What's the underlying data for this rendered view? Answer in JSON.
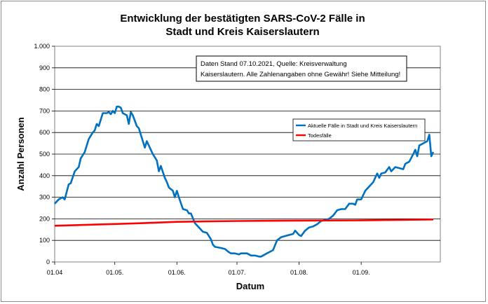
{
  "chart_data": {
    "type": "line",
    "title_lines": [
      "Entwicklung der bestätigten SARS-CoV-2 Fälle in",
      "Stadt und Kreis Kaiserslautern"
    ],
    "xlabel": "Datum",
    "ylabel": "Anzahl Personen",
    "ylim": [
      0,
      1000
    ],
    "yticks": [
      0,
      100,
      200,
      300,
      400,
      500,
      600,
      700,
      800,
      900,
      1000
    ],
    "ytick_labels": [
      "0",
      "100",
      "200",
      "300",
      "400",
      "500",
      "600",
      "700",
      "800",
      "900",
      "1.000"
    ],
    "xlim": [
      "2021-04-01",
      "2021-10-07"
    ],
    "xticks": [
      {
        "date": "2021-04-01",
        "label": "01.04"
      },
      {
        "date": "2021-05-01",
        "label": "01.05."
      },
      {
        "date": "2021-06-01",
        "label": "01.06."
      },
      {
        "date": "2021-07-01",
        "label": "01.07."
      },
      {
        "date": "2021-08-01",
        "label": "01.08."
      },
      {
        "date": "2021-09-01",
        "label": "01.09."
      }
    ],
    "grid": "horizontal",
    "legend_position": "right",
    "annotation_lines": [
      "Daten Stand 07.10.2021, Quelle: Kreisverwaltung",
      "Kaiserslautern. Alle Zahlenangaben ohne Gewähr! Siehe Mitteilung!"
    ],
    "series": [
      {
        "name": "Aktuelle Fälle in Stadt und Kreis Kaiserslautern",
        "color": "#0070c0",
        "points": [
          [
            "2021-04-01",
            270
          ],
          [
            "2021-04-03",
            290
          ],
          [
            "2021-04-05",
            300
          ],
          [
            "2021-04-06",
            290
          ],
          [
            "2021-04-08",
            360
          ],
          [
            "2021-04-09",
            365
          ],
          [
            "2021-04-11",
            420
          ],
          [
            "2021-04-13",
            440
          ],
          [
            "2021-04-14",
            480
          ],
          [
            "2021-04-16",
            510
          ],
          [
            "2021-04-18",
            570
          ],
          [
            "2021-04-20",
            600
          ],
          [
            "2021-04-21",
            610
          ],
          [
            "2021-04-22",
            640
          ],
          [
            "2021-04-23",
            630
          ],
          [
            "2021-04-25",
            690
          ],
          [
            "2021-04-27",
            690
          ],
          [
            "2021-04-28",
            695
          ],
          [
            "2021-04-29",
            685
          ],
          [
            "2021-04-30",
            700
          ],
          [
            "2021-05-01",
            690
          ],
          [
            "2021-05-02",
            720
          ],
          [
            "2021-05-03",
            720
          ],
          [
            "2021-05-04",
            715
          ],
          [
            "2021-05-05",
            690
          ],
          [
            "2021-05-07",
            680
          ],
          [
            "2021-05-08",
            640
          ],
          [
            "2021-05-09",
            695
          ],
          [
            "2021-05-10",
            680
          ],
          [
            "2021-05-12",
            630
          ],
          [
            "2021-05-13",
            620
          ],
          [
            "2021-05-15",
            560
          ],
          [
            "2021-05-16",
            530
          ],
          [
            "2021-05-17",
            560
          ],
          [
            "2021-05-19",
            520
          ],
          [
            "2021-05-20",
            500
          ],
          [
            "2021-05-22",
            470
          ],
          [
            "2021-05-23",
            420
          ],
          [
            "2021-05-24",
            445
          ],
          [
            "2021-05-26",
            390
          ],
          [
            "2021-05-27",
            370
          ],
          [
            "2021-05-28",
            345
          ],
          [
            "2021-05-30",
            330
          ],
          [
            "2021-05-31",
            300
          ],
          [
            "2021-06-01",
            330
          ],
          [
            "2021-06-02",
            300
          ],
          [
            "2021-06-04",
            245
          ],
          [
            "2021-06-06",
            240
          ],
          [
            "2021-06-07",
            225
          ],
          [
            "2021-06-08",
            225
          ],
          [
            "2021-06-10",
            180
          ],
          [
            "2021-06-12",
            160
          ],
          [
            "2021-06-14",
            140
          ],
          [
            "2021-06-16",
            135
          ],
          [
            "2021-06-18",
            105
          ],
          [
            "2021-06-19",
            80
          ],
          [
            "2021-06-20",
            70
          ],
          [
            "2021-06-23",
            65
          ],
          [
            "2021-06-25",
            60
          ],
          [
            "2021-06-27",
            45
          ],
          [
            "2021-06-28",
            40
          ],
          [
            "2021-06-30",
            40
          ],
          [
            "2021-07-02",
            35
          ],
          [
            "2021-07-03",
            40
          ],
          [
            "2021-07-04",
            40
          ],
          [
            "2021-07-06",
            40
          ],
          [
            "2021-07-08",
            30
          ],
          [
            "2021-07-10",
            30
          ],
          [
            "2021-07-12",
            25
          ],
          [
            "2021-07-13",
            25
          ],
          [
            "2021-07-15",
            35
          ],
          [
            "2021-07-17",
            45
          ],
          [
            "2021-07-19",
            55
          ],
          [
            "2021-07-21",
            100
          ],
          [
            "2021-07-23",
            115
          ],
          [
            "2021-07-25",
            120
          ],
          [
            "2021-07-27",
            125
          ],
          [
            "2021-07-29",
            130
          ],
          [
            "2021-07-30",
            145
          ],
          [
            "2021-08-01",
            125
          ],
          [
            "2021-08-02",
            120
          ],
          [
            "2021-08-04",
            145
          ],
          [
            "2021-08-06",
            160
          ],
          [
            "2021-08-08",
            165
          ],
          [
            "2021-08-10",
            175
          ],
          [
            "2021-08-12",
            190
          ],
          [
            "2021-08-14",
            195
          ],
          [
            "2021-08-16",
            200
          ],
          [
            "2021-08-18",
            215
          ],
          [
            "2021-08-20",
            240
          ],
          [
            "2021-08-22",
            245
          ],
          [
            "2021-08-24",
            245
          ],
          [
            "2021-08-26",
            270
          ],
          [
            "2021-08-28",
            270
          ],
          [
            "2021-08-29",
            265
          ],
          [
            "2021-08-30",
            290
          ],
          [
            "2021-09-01",
            290
          ],
          [
            "2021-09-03",
            330
          ],
          [
            "2021-09-05",
            350
          ],
          [
            "2021-09-07",
            370
          ],
          [
            "2021-09-09",
            410
          ],
          [
            "2021-09-10",
            390
          ],
          [
            "2021-09-11",
            410
          ],
          [
            "2021-09-13",
            415
          ],
          [
            "2021-09-15",
            440
          ],
          [
            "2021-09-16",
            420
          ],
          [
            "2021-09-18",
            440
          ],
          [
            "2021-09-20",
            435
          ],
          [
            "2021-09-22",
            430
          ],
          [
            "2021-09-23",
            455
          ],
          [
            "2021-09-25",
            465
          ],
          [
            "2021-09-27",
            500
          ],
          [
            "2021-09-28",
            520
          ],
          [
            "2021-09-29",
            490
          ],
          [
            "2021-09-30",
            540
          ],
          [
            "2021-10-02",
            550
          ],
          [
            "2021-10-04",
            560
          ],
          [
            "2021-10-05",
            590
          ],
          [
            "2021-10-06",
            490
          ],
          [
            "2021-10-07",
            510
          ]
        ]
      },
      {
        "name": "Todesfälle",
        "color": "#ff0000",
        "points": [
          [
            "2021-04-01",
            168
          ],
          [
            "2021-04-10",
            170
          ],
          [
            "2021-04-20",
            173
          ],
          [
            "2021-05-01",
            176
          ],
          [
            "2021-05-15",
            180
          ],
          [
            "2021-06-01",
            186
          ],
          [
            "2021-06-15",
            188
          ],
          [
            "2021-07-01",
            190
          ],
          [
            "2021-08-01",
            192
          ],
          [
            "2021-09-01",
            193
          ],
          [
            "2021-10-07",
            197
          ]
        ]
      }
    ]
  }
}
